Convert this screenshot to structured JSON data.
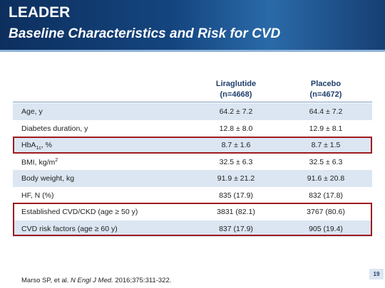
{
  "header": {
    "title": "LEADER",
    "subtitle": "Baseline Characteristics and Risk for CVD"
  },
  "table": {
    "columns": [
      {
        "name": "Liraglutide",
        "n": "(n=4668)"
      },
      {
        "name": "Placebo",
        "n": "(n=4672)"
      }
    ],
    "rows": [
      {
        "label": "Age, y",
        "values": [
          "64.2 ± 7.2",
          "64.4 ± 7.2"
        ]
      },
      {
        "label": "Diabetes duration, y",
        "values": [
          "12.8 ± 8.0",
          "12.9 ± 8.1"
        ]
      },
      {
        "label": "HbA",
        "label_sub": "1c",
        "label_tail": ", %",
        "values": [
          "8.7 ± 1.6",
          "8.7 ± 1.5"
        ]
      },
      {
        "label": "BMI, kg/m",
        "label_sup": "2",
        "values": [
          "32.5 ± 6.3",
          "32.5 ± 6.3"
        ]
      },
      {
        "label": "Body weight, kg",
        "values": [
          "91.9 ± 21.2",
          "91.6 ± 20.8"
        ]
      },
      {
        "label": "HF, N (%)",
        "values": [
          "835 (17.9)",
          "832 (17.8)"
        ]
      },
      {
        "label": "Established CVD/CKD (age ≥ 50 y)",
        "values": [
          "3831 (82.1)",
          "3767 (80.6)"
        ]
      },
      {
        "label": "CVD risk factors (age ≥ 60 y)",
        "values": [
          "837 (17.9)",
          "905 (19.4)"
        ]
      }
    ]
  },
  "footer": {
    "citation_authors": "Marso SP, et al.",
    "citation_journal": "N Engl J Med.",
    "citation_details": "2016;375:311-322.",
    "page_number": "19"
  }
}
